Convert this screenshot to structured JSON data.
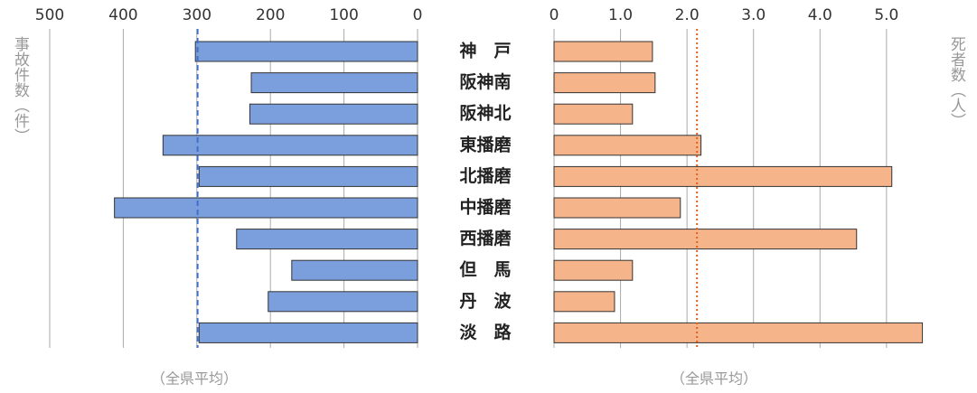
{
  "chart_data": [
    {
      "type": "bar",
      "orientation": "horizontal",
      "y_label": "事故件数（件）",
      "categories": [
        "神　戸",
        "阪神南",
        "阪神北",
        "東播磨",
        "北播磨",
        "中播磨",
        "西播磨",
        "但　馬",
        "丹　波",
        "淡　路"
      ],
      "values": [
        302,
        226,
        228,
        346,
        297,
        412,
        246,
        171,
        203,
        297
      ],
      "color": "#7b9fdc",
      "average": 299,
      "average_color": "#3f6fc8",
      "average_label": "（全県平均）",
      "xlim": [
        500,
        0
      ],
      "xticks": [
        500,
        400,
        300,
        200,
        100,
        0
      ],
      "grid": true
    },
    {
      "type": "bar",
      "orientation": "horizontal",
      "y_label": "死者数（人）",
      "values": [
        1.48,
        1.52,
        1.18,
        2.21,
        5.08,
        1.9,
        4.55,
        1.18,
        0.91,
        5.54
      ],
      "color": "#f6b48a",
      "average": 2.15,
      "average_color": "#e0601a",
      "average_label": "（全県平均）",
      "xlim": [
        0,
        5.6
      ],
      "xticks": [
        0,
        {
          "value": 1,
          "label": "1.0"
        },
        {
          "value": 2,
          "label": "2.0"
        },
        {
          "value": 3,
          "label": "3.0"
        },
        {
          "value": 4,
          "label": "4.0"
        },
        {
          "value": 5,
          "label": "5.0"
        }
      ],
      "grid": true
    }
  ]
}
